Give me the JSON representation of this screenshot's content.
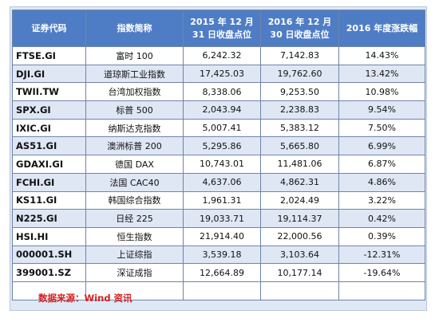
{
  "headers": {
    "code": "证券代码",
    "name": "指数简称",
    "close2015_line1": "2015 年 12 月",
    "close2015_line2": "31 日收盘点位",
    "close2016_line1": "2016 年 12 月",
    "close2016_line2": "30 日收盘点位",
    "change": "2016 年度涨跌幅"
  },
  "rows": [
    {
      "code": "FTSE.GI",
      "name": "富时 100",
      "close2015": "6,242.32",
      "close2016": "7,142.83",
      "change": "14.43%"
    },
    {
      "code": "DJI.GI",
      "name": "道琼斯工业指数",
      "close2015": "17,425.03",
      "close2016": "19,762.60",
      "change": "13.42%"
    },
    {
      "code": "TWII.TW",
      "name": "台湾加权指数",
      "close2015": "8,338.06",
      "close2016": "9,253.50",
      "change": "10.98%"
    },
    {
      "code": "SPX.GI",
      "name": "标普 500",
      "close2015": "2,043.94",
      "close2016": "2,238.83",
      "change": "9.54%"
    },
    {
      "code": "IXIC.GI",
      "name": "纳斯达克指数",
      "close2015": "5,007.41",
      "close2016": "5,383.12",
      "change": "7.50%"
    },
    {
      "code": "AS51.GI",
      "name": "澳洲标普 200",
      "close2015": "5,295.86",
      "close2016": "5,665.80",
      "change": "6.99%"
    },
    {
      "code": "GDAXI.GI",
      "name": "德国 DAX",
      "close2015": "10,743.01",
      "close2016": "11,481.06",
      "change": "6.87%"
    },
    {
      "code": "FCHI.GI",
      "name": "法国 CAC40",
      "close2015": "4,637.06",
      "close2016": "4,862.31",
      "change": "4.86%"
    },
    {
      "code": "KS11.GI",
      "name": "韩国综合指数",
      "close2015": "1,961.31",
      "close2016": "2,024.49",
      "change": "3.22%"
    },
    {
      "code": "N225.GI",
      "name": "日经 225",
      "close2015": "19,033.71",
      "close2016": "19,114.37",
      "change": "0.42%"
    },
    {
      "code": "HSI.HI",
      "name": "恒生指数",
      "close2015": "21,914.40",
      "close2016": "22,000.56",
      "change": "0.39%"
    },
    {
      "code": "000001.SH",
      "name": "上证综指",
      "close2015": "3,539.18",
      "close2016": "3,103.64",
      "change": "-12.31%"
    },
    {
      "code": "399001.SZ",
      "name": "深证成指",
      "close2015": "12,664.89",
      "close2016": "10,177.14",
      "change": "-19.64%"
    }
  ],
  "source": "数据来源：Wind 资讯",
  "colors": {
    "header_bg": "#4f7dc5",
    "frame_bg": "#dfe8f5",
    "source_text": "#d42020"
  }
}
